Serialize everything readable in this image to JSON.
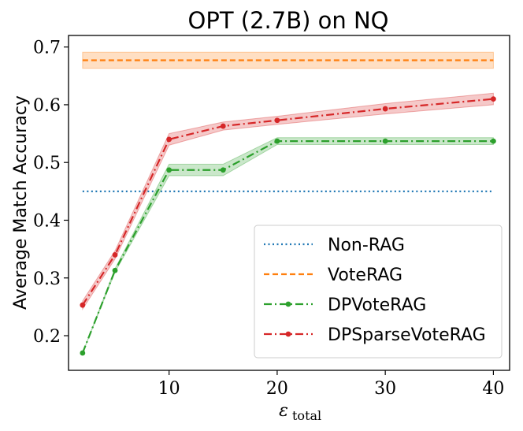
{
  "chart_data": {
    "type": "line",
    "title": "OPT (2.7B) on NQ",
    "xlabel": "ε",
    "xlabel_sub": "total",
    "ylabel": "Average Match Accuracy",
    "xlim": [
      0.7,
      41.5
    ],
    "ylim": [
      0.14,
      0.72
    ],
    "xticks": [
      10,
      20,
      30,
      40
    ],
    "xtick_labels": [
      "10",
      "20",
      "30",
      "40"
    ],
    "yticks": [
      0.2,
      0.3,
      0.4,
      0.5,
      0.6,
      0.7
    ],
    "ytick_labels": [
      "0.2",
      "0.3",
      "0.4",
      "0.5",
      "0.6",
      "0.7"
    ],
    "legend_position": "bottom-right",
    "series": [
      {
        "name": "Non-RAG",
        "color": "#1f77b4",
        "style": "dotted",
        "markers": false,
        "x": [
          2,
          40
        ],
        "y": [
          0.45,
          0.45
        ],
        "band": null
      },
      {
        "name": "VoteRAG",
        "color": "#ff7f0e",
        "style": "dashed",
        "markers": false,
        "x": [
          2,
          40
        ],
        "y": [
          0.677,
          0.677
        ],
        "band": [
          [
            0.663,
            0.663
          ],
          [
            0.691,
            0.691
          ]
        ]
      },
      {
        "name": "DPVoteRAG",
        "color": "#2ca02c",
        "style": "dashdot",
        "markers": true,
        "x": [
          2,
          5,
          10,
          15,
          20,
          30,
          40
        ],
        "y": [
          0.17,
          0.313,
          0.487,
          0.487,
          0.537,
          0.537,
          0.537
        ],
        "band": [
          [
            0.17,
            0.31,
            0.477,
            0.477,
            0.531,
            0.531,
            0.531
          ],
          [
            0.17,
            0.316,
            0.497,
            0.497,
            0.543,
            0.543,
            0.543
          ]
        ]
      },
      {
        "name": "DPSparseVoteRAG",
        "color": "#d62728",
        "style": "dashdot",
        "markers": true,
        "x": [
          2,
          5,
          10,
          15,
          20,
          30,
          40
        ],
        "y": [
          0.253,
          0.34,
          0.54,
          0.563,
          0.573,
          0.593,
          0.61
        ],
        "band": [
          [
            0.246,
            0.333,
            0.53,
            0.556,
            0.566,
            0.584,
            0.6
          ],
          [
            0.26,
            0.347,
            0.55,
            0.57,
            0.58,
            0.602,
            0.62
          ]
        ]
      }
    ]
  }
}
